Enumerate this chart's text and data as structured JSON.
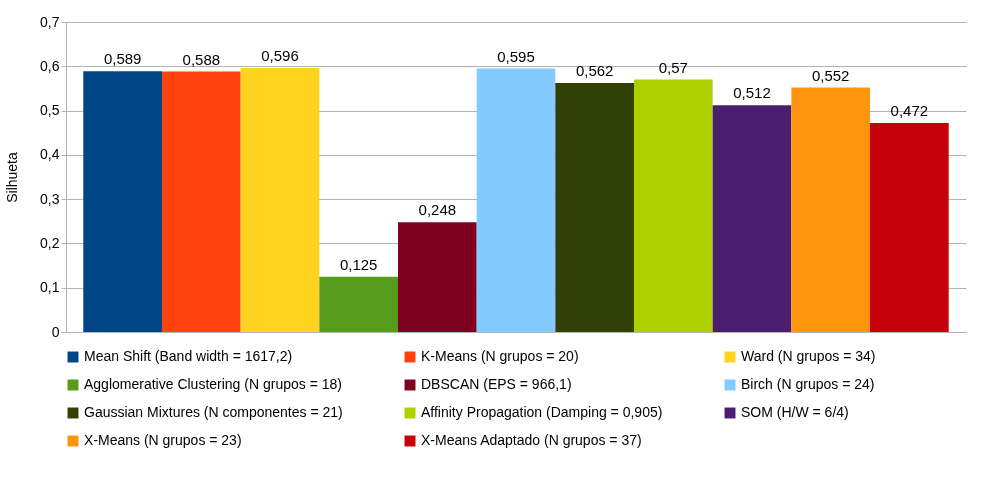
{
  "chart_data": {
    "type": "bar",
    "ylabel": "Silhueta",
    "categories": [
      null
    ],
    "series": [
      {
        "name": "Mean Shift (Band width = 1617,2)",
        "color": "#004586",
        "values": [
          0.589
        ],
        "value_labels": [
          "0,589"
        ]
      },
      {
        "name": "K-Means (N grupos = 20)",
        "color": "#ff420e",
        "values": [
          0.588
        ],
        "value_labels": [
          "0,588"
        ]
      },
      {
        "name": "Ward (N grupos = 34)",
        "color": "#ffd320",
        "values": [
          0.596
        ],
        "value_labels": [
          "0,596"
        ]
      },
      {
        "name": "Agglomerative Clustering (N grupos = 18)",
        "color": "#579d1c",
        "values": [
          0.125
        ],
        "value_labels": [
          "0,125"
        ]
      },
      {
        "name": "DBSCAN (EPS = 966,1)",
        "color": "#7e0021",
        "values": [
          0.248
        ],
        "value_labels": [
          "0,248"
        ]
      },
      {
        "name": "Birch (N grupos = 24)",
        "color": "#83caff",
        "values": [
          0.595
        ],
        "value_labels": [
          "0,595"
        ]
      },
      {
        "name": "Gaussian Mixtures (N componentes = 21)",
        "color": "#314004",
        "values": [
          0.562
        ],
        "value_labels": [
          "0,562"
        ]
      },
      {
        "name": "Affinity Propagation (Damping = 0,905)",
        "color": "#aecf00",
        "values": [
          0.57
        ],
        "value_labels": [
          "0,57"
        ]
      },
      {
        "name": "SOM (H/W = 6/4)",
        "color": "#4b1f6f",
        "values": [
          0.512
        ],
        "value_labels": [
          "0,512"
        ]
      },
      {
        "name": "X-Means (N grupos = 23)",
        "color": "#ff950e",
        "values": [
          0.552
        ],
        "value_labels": [
          "0,552"
        ]
      },
      {
        "name": "X-Means Adaptado (N grupos = 37)",
        "color": "#c5000b",
        "values": [
          0.472
        ],
        "value_labels": [
          "0,472"
        ]
      }
    ],
    "ylim": [
      0,
      0.7
    ],
    "yticks": [
      {
        "value": 0,
        "label": "0"
      },
      {
        "value": 0.1,
        "label": "0,1"
      },
      {
        "value": 0.2,
        "label": "0,2"
      },
      {
        "value": 0.3,
        "label": "0,3"
      },
      {
        "value": 0.4,
        "label": "0,4"
      },
      {
        "value": 0.5,
        "label": "0,5"
      },
      {
        "value": 0.6,
        "label": "0,6"
      },
      {
        "value": 0.7,
        "label": "0,7"
      }
    ],
    "grid": "y",
    "legend": "bottom"
  }
}
